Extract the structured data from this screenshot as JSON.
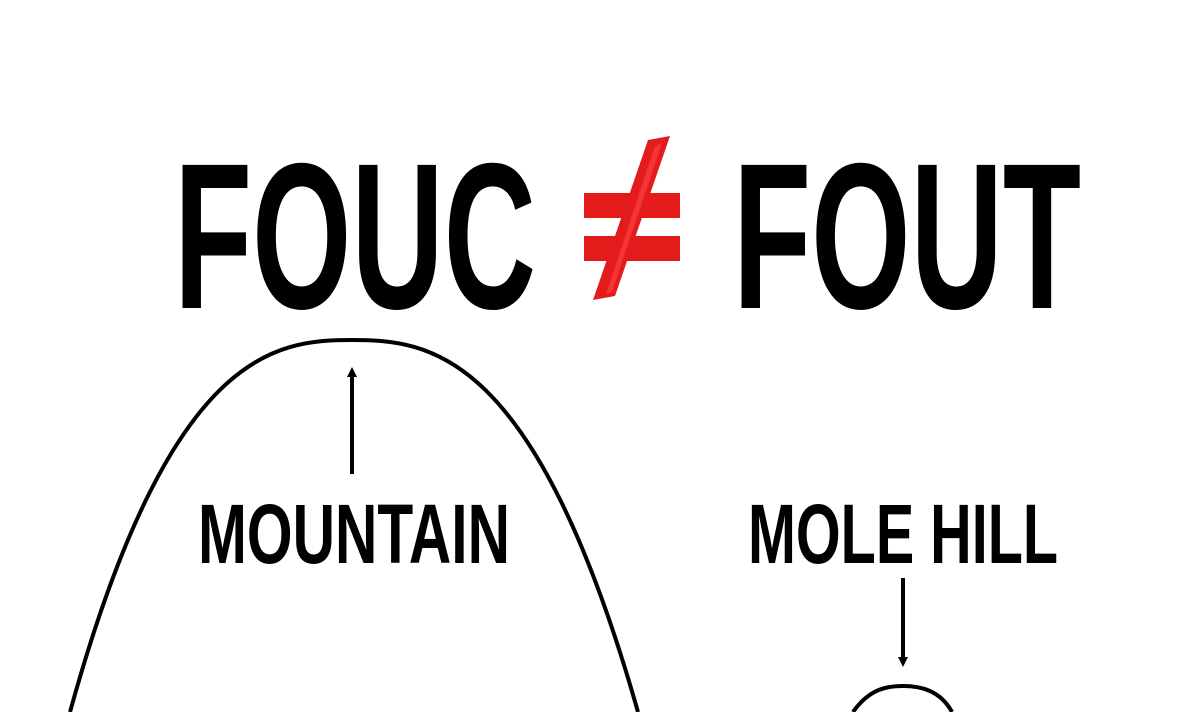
{
  "headline": {
    "left_term": "FOUC",
    "right_term": "FOUT"
  },
  "not_equal_sign": {
    "color": "#e41b1b",
    "icon": "not-equal-icon"
  },
  "labels": {
    "mountain": "MOUNTAIN",
    "mole_hill": "MOLE HILL"
  },
  "colors": {
    "ink": "#000000",
    "background": "#ffffff",
    "accent": "#e41b1b"
  }
}
